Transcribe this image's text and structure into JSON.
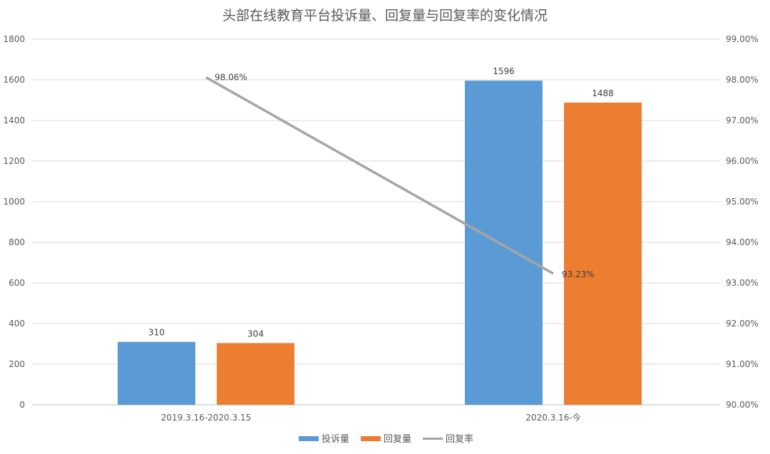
{
  "chart_data": {
    "type": "bar+line",
    "title": "头部在线教育平台投诉量、回复量与回复率的变化情况",
    "categories": [
      "2019.3.16-2020.3.15",
      "2020.3.16-今"
    ],
    "series": [
      {
        "name": "投诉量",
        "type": "bar",
        "axis": "left",
        "values": [
          310,
          1596
        ],
        "labels": [
          "310",
          "1596"
        ],
        "color": "#5B9BD5"
      },
      {
        "name": "回复量",
        "type": "bar",
        "axis": "left",
        "values": [
          304,
          1488
        ],
        "labels": [
          "304",
          "1488"
        ],
        "color": "#ED7D31"
      },
      {
        "name": "回复率",
        "type": "line",
        "axis": "right",
        "values": [
          98.06,
          93.23
        ],
        "labels": [
          "98.06%",
          "93.23%"
        ],
        "color": "#A5A5A5"
      }
    ],
    "y_left": {
      "range": [
        0,
        1800
      ],
      "ticks": [
        "0",
        "200",
        "400",
        "600",
        "800",
        "1000",
        "1200",
        "1400",
        "1600",
        "1800"
      ]
    },
    "y_right": {
      "range": [
        90,
        99
      ],
      "ticks": [
        "90.00%",
        "91.00%",
        "92.00%",
        "93.00%",
        "94.00%",
        "95.00%",
        "96.00%",
        "97.00%",
        "98.00%",
        "99.00%"
      ]
    },
    "grid": true,
    "legend": "bottom"
  }
}
